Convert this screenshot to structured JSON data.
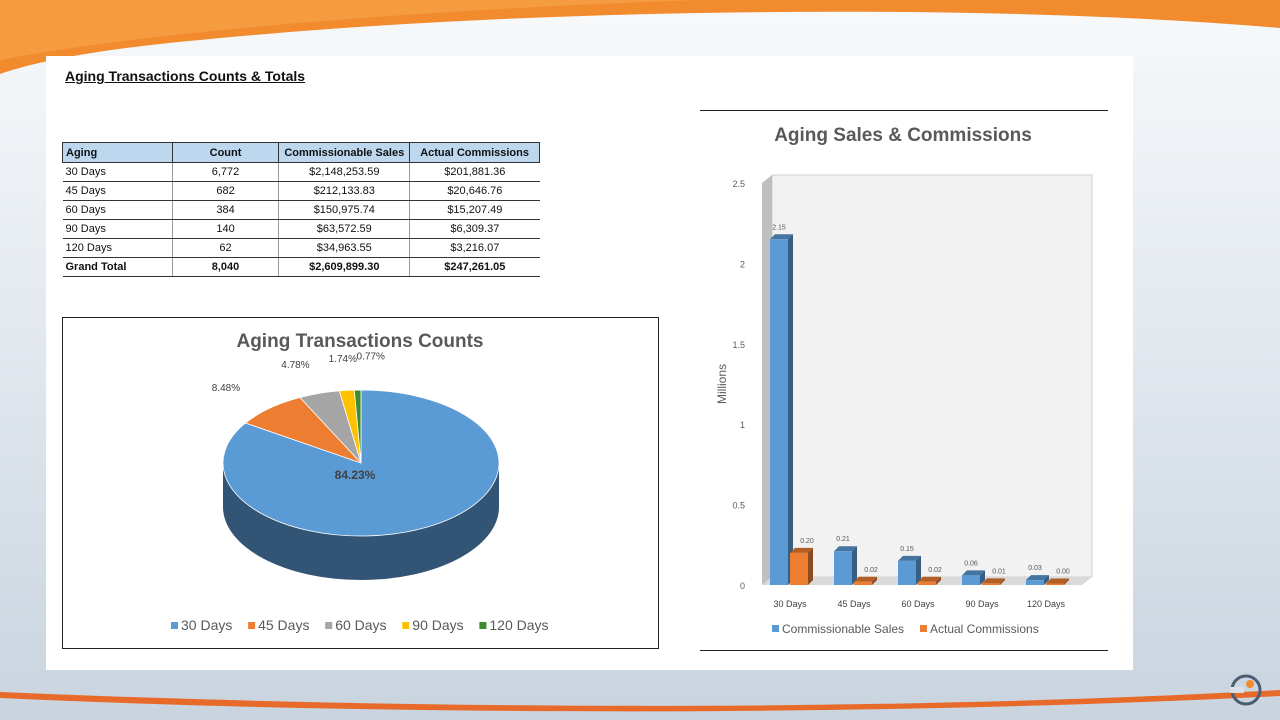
{
  "page_title": "Aging Transactions Counts & Totals",
  "colors": {
    "accent_orange": "#f28a2e",
    "blue": "#5b9bd5",
    "orange": "#ed7d31",
    "gray": "#a5a5a5",
    "yellow": "#ffc000",
    "green": "#3d8b2f"
  },
  "table": {
    "headers": [
      "Aging",
      "Count",
      "Commissionable Sales",
      "Actual Commissions"
    ],
    "rows": [
      [
        "30 Days",
        "6,772",
        "$2,148,253.59",
        "$201,881.36"
      ],
      [
        "45 Days",
        "682",
        "$212,133.83",
        "$20,646.76"
      ],
      [
        "60 Days",
        "384",
        "$150,975.74",
        "$15,207.49"
      ],
      [
        "90 Days",
        "140",
        "$63,572.59",
        "$6,309.37"
      ],
      [
        "120 Days",
        "62",
        "$34,963.55",
        "$3,216.07"
      ]
    ],
    "total": [
      "Grand Total",
      "8,040",
      "$2,609,899.30",
      "$247,261.05"
    ]
  },
  "chart_data": [
    {
      "type": "pie",
      "title": "Aging Transactions Counts",
      "labels": [
        "30 Days",
        "45 Days",
        "60 Days",
        "90 Days",
        "120 Days"
      ],
      "values": [
        84.23,
        8.48,
        4.78,
        1.74,
        0.77
      ],
      "data_labels": [
        "84.23%",
        "8.48%",
        "4.78%",
        "1.74%",
        "0.77%"
      ],
      "colors": [
        "#5b9bd5",
        "#ed7d31",
        "#a5a5a5",
        "#ffc000",
        "#3d8b2f"
      ],
      "legend_position": "bottom",
      "style": "3d"
    },
    {
      "type": "bar",
      "title": "Aging Sales & Commissions",
      "categories": [
        "30 Days",
        "45 Days",
        "60 Days",
        "90 Days",
        "120 Days"
      ],
      "series": [
        {
          "name": "Commissionable Sales",
          "values": [
            2.15,
            0.21,
            0.15,
            0.06,
            0.03
          ],
          "labels": [
            "2.15",
            "0.21",
            "0.15",
            "0.06",
            "0.03"
          ],
          "color": "#5b9bd5"
        },
        {
          "name": "Actual Commissions",
          "values": [
            0.2,
            0.02,
            0.02,
            0.01,
            0.0
          ],
          "labels": [
            "0.20",
            "0.02",
            "0.02",
            "0.01",
            "0.00"
          ],
          "color": "#ed7d31"
        }
      ],
      "ylabel": "Millions",
      "yticks": [
        "0",
        "0.5",
        "1",
        "1.5",
        "2",
        "2.5"
      ],
      "ylim": [
        0,
        2.5
      ],
      "legend_position": "bottom",
      "style": "3d"
    }
  ]
}
